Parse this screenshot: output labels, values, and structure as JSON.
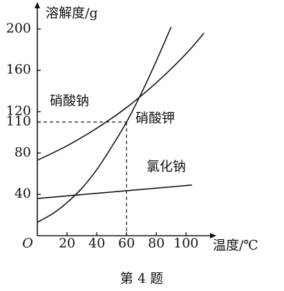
{
  "chart_data": {
    "type": "line",
    "y_label": "溶解度/g",
    "x_label": "温度/℃",
    "caption": "第 4 题",
    "xlim": [
      0,
      118
    ],
    "ylim": [
      0,
      222
    ],
    "xticks": [
      {
        "value": 0,
        "label": "O"
      },
      20,
      40,
      60,
      80,
      100
    ],
    "yticks": [
      40,
      80,
      110,
      120,
      160,
      200
    ],
    "series": [
      {
        "name": "硝酸钠",
        "color": "#111111",
        "x": [
          0,
          20,
          40,
          60,
          80,
          100,
          112
        ],
        "values": [
          73,
          87,
          104,
          124,
          148,
          176,
          196
        ]
      },
      {
        "name": "硝酸钾",
        "color": "#111111",
        "x": [
          0,
          10,
          20,
          30,
          40,
          50,
          60,
          70,
          80,
          90
        ],
        "values": [
          13,
          21,
          32,
          46,
          64,
          86,
          110,
          138,
          169,
          202
        ]
      },
      {
        "name": "氯化钠",
        "color": "#111111",
        "x": [
          0,
          104
        ],
        "values": [
          36,
          49
        ]
      }
    ],
    "reference": {
      "x": 60,
      "y": 110
    }
  }
}
